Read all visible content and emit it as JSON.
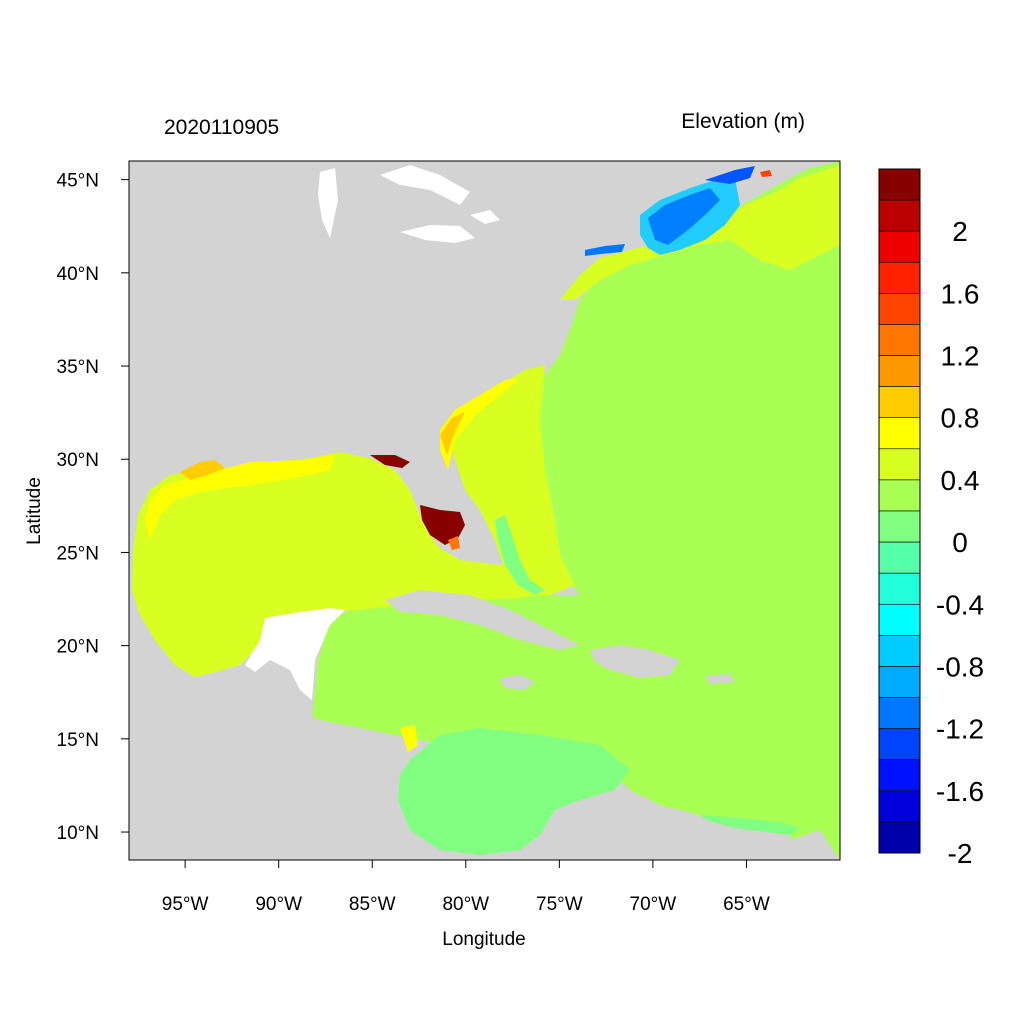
{
  "map": {
    "date_label": "2020110905",
    "variable_title": "Elevation (m)",
    "xlabel": "Longitude",
    "ylabel": "Latitude",
    "extent": {
      "lon": [
        -98,
        -60
      ],
      "lat": [
        8.5,
        46
      ]
    },
    "lon_ticks": [
      {
        "value": -95,
        "label": "95°W"
      },
      {
        "value": -90,
        "label": "90°W"
      },
      {
        "value": -85,
        "label": "85°W"
      },
      {
        "value": -80,
        "label": "80°W"
      },
      {
        "value": -75,
        "label": "75°W"
      },
      {
        "value": -70,
        "label": "70°W"
      },
      {
        "value": -65,
        "label": "65°W"
      }
    ],
    "lat_ticks": [
      {
        "value": 45,
        "label": "45°N"
      },
      {
        "value": 40,
        "label": "40°N"
      },
      {
        "value": 35,
        "label": "35°N"
      },
      {
        "value": 30,
        "label": "30°N"
      },
      {
        "value": 25,
        "label": "25°N"
      },
      {
        "value": 20,
        "label": "20°N"
      },
      {
        "value": 15,
        "label": "15°N"
      },
      {
        "value": 10,
        "label": "10°N"
      }
    ],
    "colors": {
      "land": "#d3d3d3",
      "ocean_zero": "#aaff55",
      "gulf": "#d9ff22",
      "gulf_coast": "#ffff00",
      "caribbean_sw": "#80ff80",
      "gulf_of_maine": "#0080ff",
      "florida_high": "#880000"
    }
  },
  "colorbar": {
    "bins": [
      {
        "color": "#880000"
      },
      {
        "color": "#bb0000"
      },
      {
        "color": "#ee0000"
      },
      {
        "color": "#ff2200"
      },
      {
        "color": "#ff4400"
      },
      {
        "color": "#ff7700"
      },
      {
        "color": "#ff9900"
      },
      {
        "color": "#ffcc00"
      },
      {
        "color": "#ffff00"
      },
      {
        "color": "#d9ff22"
      },
      {
        "color": "#aaff55"
      },
      {
        "color": "#80ff80"
      },
      {
        "color": "#55ffaa"
      },
      {
        "color": "#22ffdd"
      },
      {
        "color": "#00ffff"
      },
      {
        "color": "#00ccff"
      },
      {
        "color": "#00aaff"
      },
      {
        "color": "#0077ff"
      },
      {
        "color": "#0044ff"
      },
      {
        "color": "#0011ff"
      },
      {
        "color": "#0000dd"
      },
      {
        "color": "#0000aa"
      }
    ],
    "labels": [
      "2",
      "1.6",
      "1.2",
      "0.8",
      "0.4",
      "0",
      "-0.4",
      "-0.8",
      "-1.2",
      "-1.6",
      "-2"
    ]
  }
}
